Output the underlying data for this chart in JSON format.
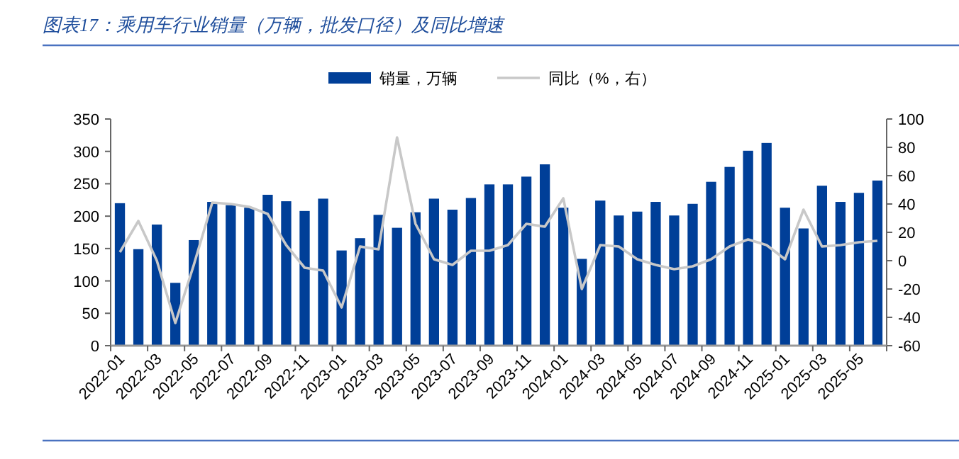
{
  "chart_data": {
    "type": "bar",
    "title": "图表17：乘用车行业销量（万辆，批发口径）及同比增速",
    "categories": [
      "2022-01",
      null,
      "2022-03",
      null,
      "2022-05",
      null,
      "2022-07",
      null,
      "2022-09",
      null,
      "2022-11",
      null,
      "2023-01",
      null,
      "2023-03",
      null,
      "2023-05",
      null,
      "2023-07",
      null,
      "2023-09",
      null,
      "2023-11",
      null,
      "2024-01",
      null,
      "2024-03",
      null,
      "2024-05",
      null,
      "2024-07",
      null,
      "2024-09",
      null,
      "2024-11",
      null,
      "2025-01",
      null,
      "2025-03",
      null,
      "2025-05",
      null
    ],
    "series": [
      {
        "name": "销量，万辆",
        "color": "#003f98",
        "values": [
          220,
          149,
          187,
          97,
          163,
          222,
          217,
          213,
          233,
          223,
          208,
          227,
          147,
          166,
          202,
          182,
          206,
          227,
          210,
          228,
          249,
          249,
          261,
          280,
          213,
          134,
          224,
          201,
          207,
          222,
          201,
          219,
          253,
          276,
          301,
          313,
          213,
          181,
          247,
          222,
          236,
          255
        ]
      },
      {
        "name": "同比（%，右）",
        "type": "line",
        "axis": "y2",
        "color": "#c8c8c8",
        "values": [
          6,
          28,
          0,
          -44,
          -3,
          41,
          40,
          38,
          33,
          11,
          -5,
          -7,
          -33,
          10,
          8,
          87,
          26,
          1,
          -3,
          7,
          7,
          11,
          26,
          24,
          44,
          -20,
          11,
          10,
          1,
          -3,
          -6,
          -4,
          1,
          10,
          15,
          11,
          1,
          36,
          10,
          11,
          13,
          14
        ]
      }
    ],
    "ylim": [
      0,
      350
    ],
    "yticks": [
      0,
      50,
      100,
      150,
      200,
      250,
      300,
      350
    ],
    "y2lim": [
      -60,
      100
    ],
    "y2ticks": [
      -60,
      -40,
      -20,
      0,
      20,
      40,
      60,
      80,
      100
    ],
    "legend": "top",
    "grid": false
  }
}
